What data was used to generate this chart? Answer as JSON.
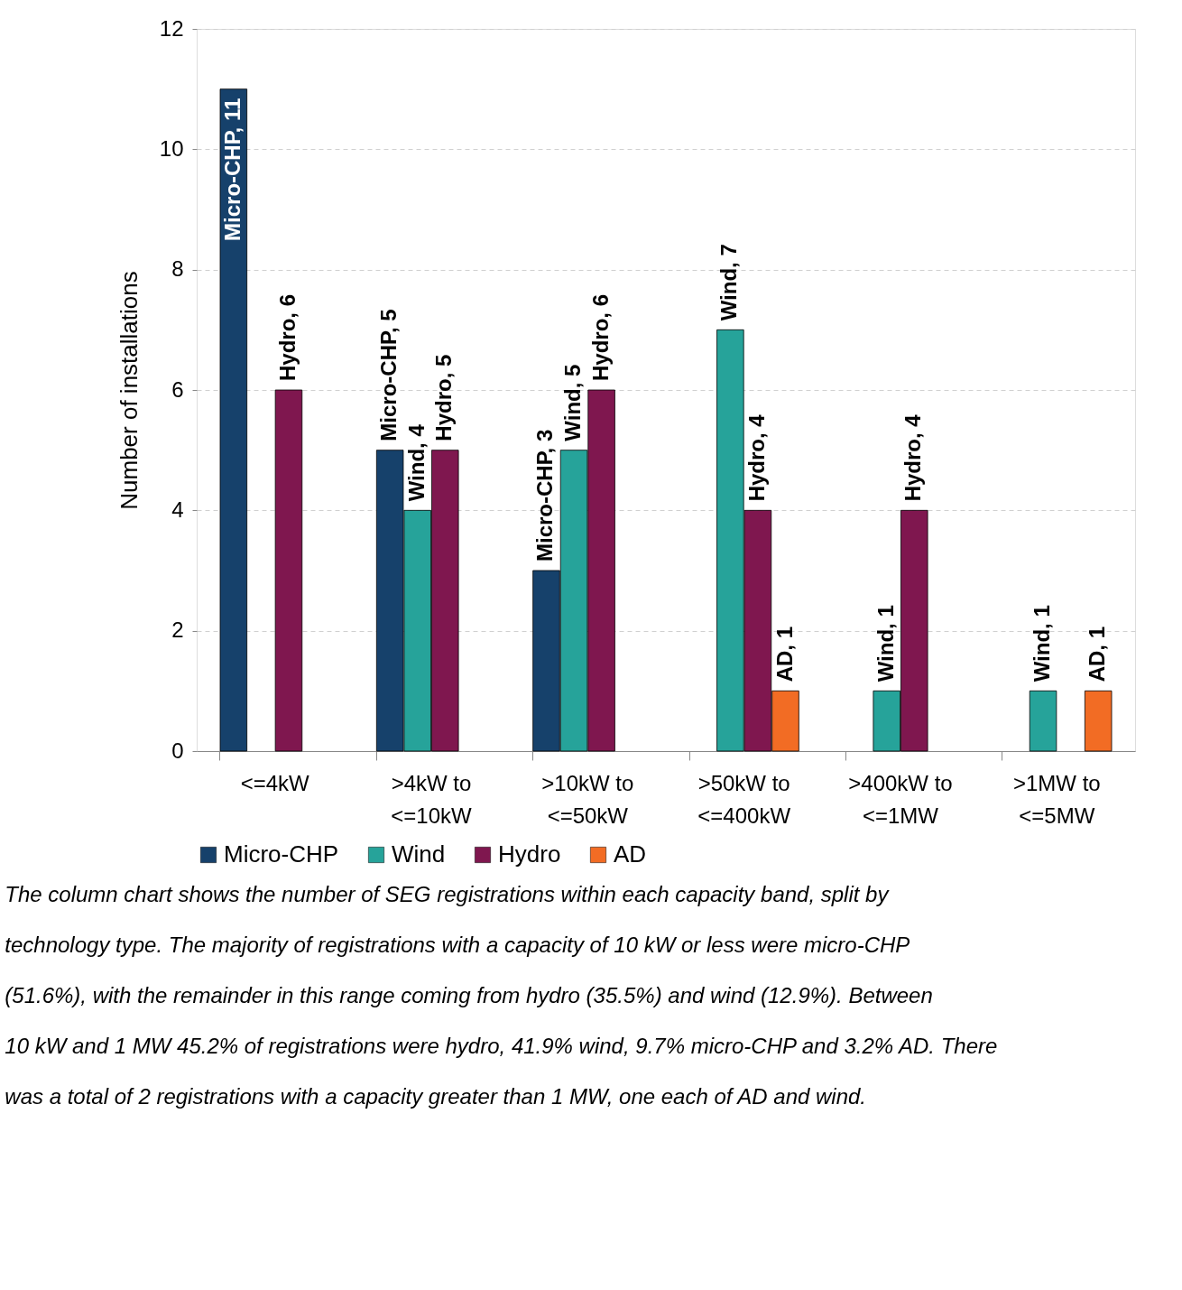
{
  "chart_data": {
    "type": "bar",
    "ylabel": "Number of installations",
    "categories": [
      "<=4kW",
      ">4kW to <=10kW",
      ">10kW to <=50kW",
      ">50kW to <=400kW",
      ">400kW to <=1MW",
      ">1MW to <=5MW"
    ],
    "series": [
      {
        "name": "Micro-CHP",
        "color": "#16416b",
        "values": [
          11,
          5,
          3,
          null,
          null,
          null
        ],
        "value_labels": [
          "Micro-CHP, 11",
          "Micro-CHP, 5",
          "Micro-CHP, 3",
          null,
          null,
          null
        ]
      },
      {
        "name": "Wind",
        "color": "#26a39a",
        "values": [
          null,
          4,
          5,
          7,
          1,
          1
        ],
        "value_labels": [
          null,
          "Wind, 4",
          "Wind, 5",
          "Wind, 7",
          "Wind, 1",
          "Wind, 1"
        ]
      },
      {
        "name": "Hydro",
        "color": "#7f174f",
        "values": [
          6,
          5,
          6,
          4,
          4,
          null
        ],
        "value_labels": [
          "Hydro, 6",
          "Hydro, 5",
          "Hydro, 6",
          "Hydro, 4",
          "Hydro, 4",
          null
        ]
      },
      {
        "name": "AD",
        "color": "#f26c24",
        "values": [
          null,
          null,
          null,
          1,
          null,
          1
        ],
        "value_labels": [
          null,
          null,
          null,
          "AD, 1",
          null,
          "AD, 1"
        ]
      }
    ],
    "ylim": [
      0,
      12
    ],
    "yticks": [
      0,
      2,
      4,
      6,
      8,
      10,
      12
    ],
    "grid": "y",
    "legend": "bottom",
    "annotations": [
      "The column chart shows the number of SEG registrations within each capacity band, split by technology type. The majority of registrations with a capacity of 10 kW or less were micro-CHP (51.6%), with the remainder in this range coming from hydro (35.5%) and wind (12.9%). Between 10 kW and 1 MW 45.2% of registrations were hydro, 41.9% wind, 9.7% micro-CHP and 3.2% AD. There was a total of 2 registrations with a capacity greater than 1 MW, one each of AD and wind."
    ]
  }
}
